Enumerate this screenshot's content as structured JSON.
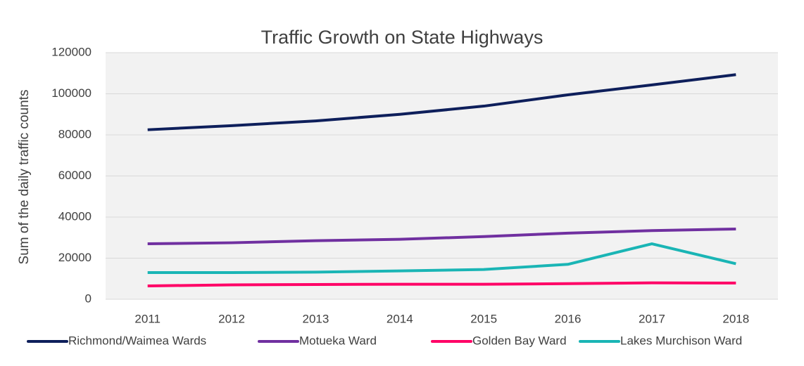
{
  "chart_data": {
    "type": "line",
    "title": "Traffic Growth on State Highways",
    "y_label": "Sum of the daily traffic counts",
    "categories": [
      "2011",
      "2012",
      "2013",
      "2014",
      "2015",
      "2016",
      "2017",
      "2018"
    ],
    "series": [
      {
        "name": "Richmond/Waimea Wards",
        "color": "#0e1f5b",
        "values": [
          82500,
          84500,
          86800,
          90000,
          94000,
          99500,
          104300,
          109300
        ]
      },
      {
        "name": "Motueka Ward",
        "color": "#7030a0",
        "values": [
          27000,
          27500,
          28500,
          29200,
          30500,
          32200,
          33400,
          34200
        ]
      },
      {
        "name": "Golden Bay Ward",
        "color": "#ff0066",
        "values": [
          6500,
          7000,
          7200,
          7300,
          7300,
          7600,
          8000,
          7900
        ]
      },
      {
        "name": "Lakes Murchison Ward",
        "color": "#1ab5b5",
        "values": [
          13000,
          13000,
          13200,
          13800,
          14500,
          17000,
          27000,
          17300
        ]
      }
    ],
    "ylim": [
      0,
      120000
    ],
    "yticks": [
      0,
      20000,
      40000,
      60000,
      80000,
      100000,
      120000
    ],
    "grid": true,
    "legend": "bottom"
  }
}
